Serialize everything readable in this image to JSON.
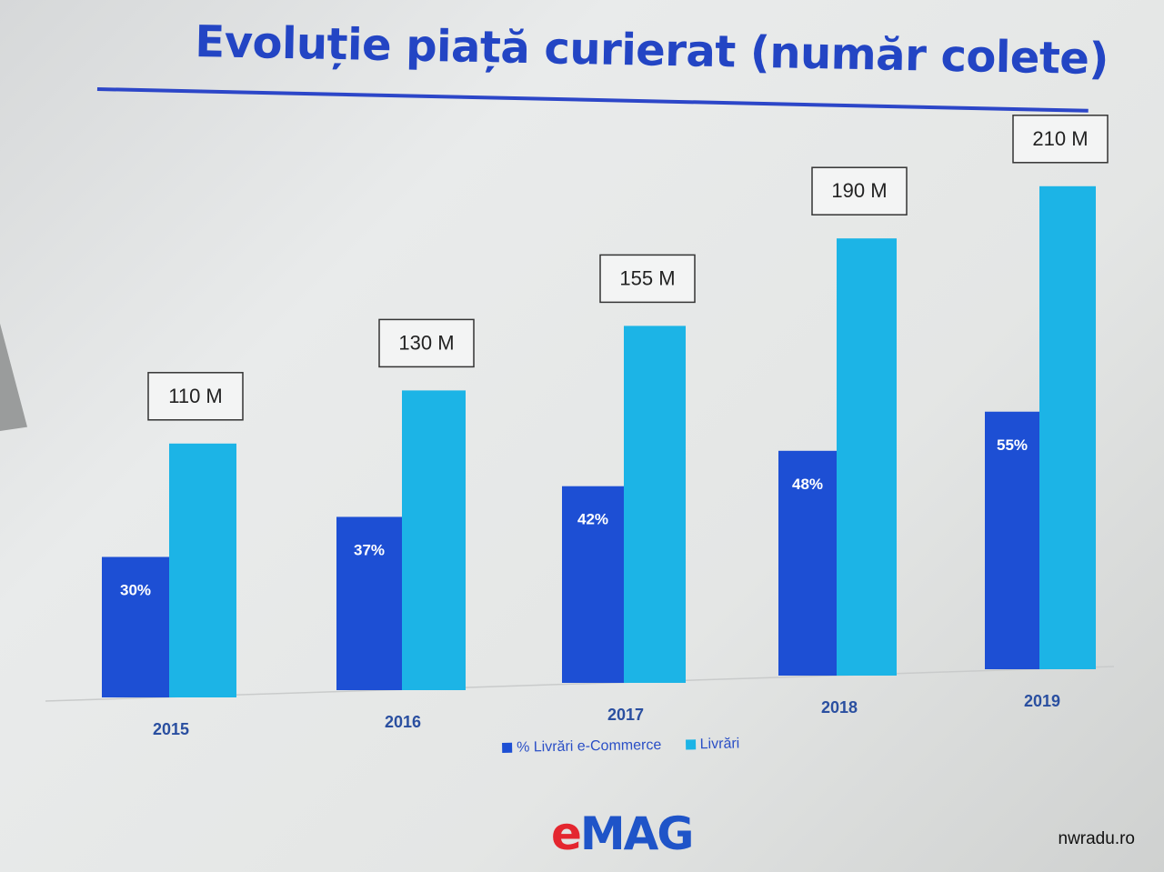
{
  "slide": {
    "title": "Evoluție piață curierat (număr colete)",
    "watermark": "nwradu.ro"
  },
  "logo": {
    "text_e": "e",
    "text_mag": "MAG",
    "colors": {
      "e": "#e4262f",
      "mag": "#1f54c8"
    }
  },
  "chart_data": {
    "type": "bar",
    "categories": [
      "2015",
      "2016",
      "2017",
      "2018",
      "2019"
    ],
    "series": [
      {
        "name": "% Livrări e-Commerce",
        "values": [
          30,
          37,
          42,
          48,
          55
        ],
        "labels": [
          "30%",
          "37%",
          "42%",
          "48%",
          "55%"
        ],
        "unit": "%",
        "color": "#1d4fd4"
      },
      {
        "name": "Livrări",
        "values": [
          110,
          130,
          155,
          190,
          210
        ],
        "labels": [
          "110 M",
          "130 M",
          "155 M",
          "190 M",
          "210 M"
        ],
        "unit": "M",
        "color": "#1cb4e6"
      }
    ],
    "ylim": [
      0,
      220
    ],
    "grid": false,
    "legend": "bottom",
    "title": "Evoluție piață curierat (număr colete)",
    "xlabel": "",
    "ylabel": ""
  }
}
